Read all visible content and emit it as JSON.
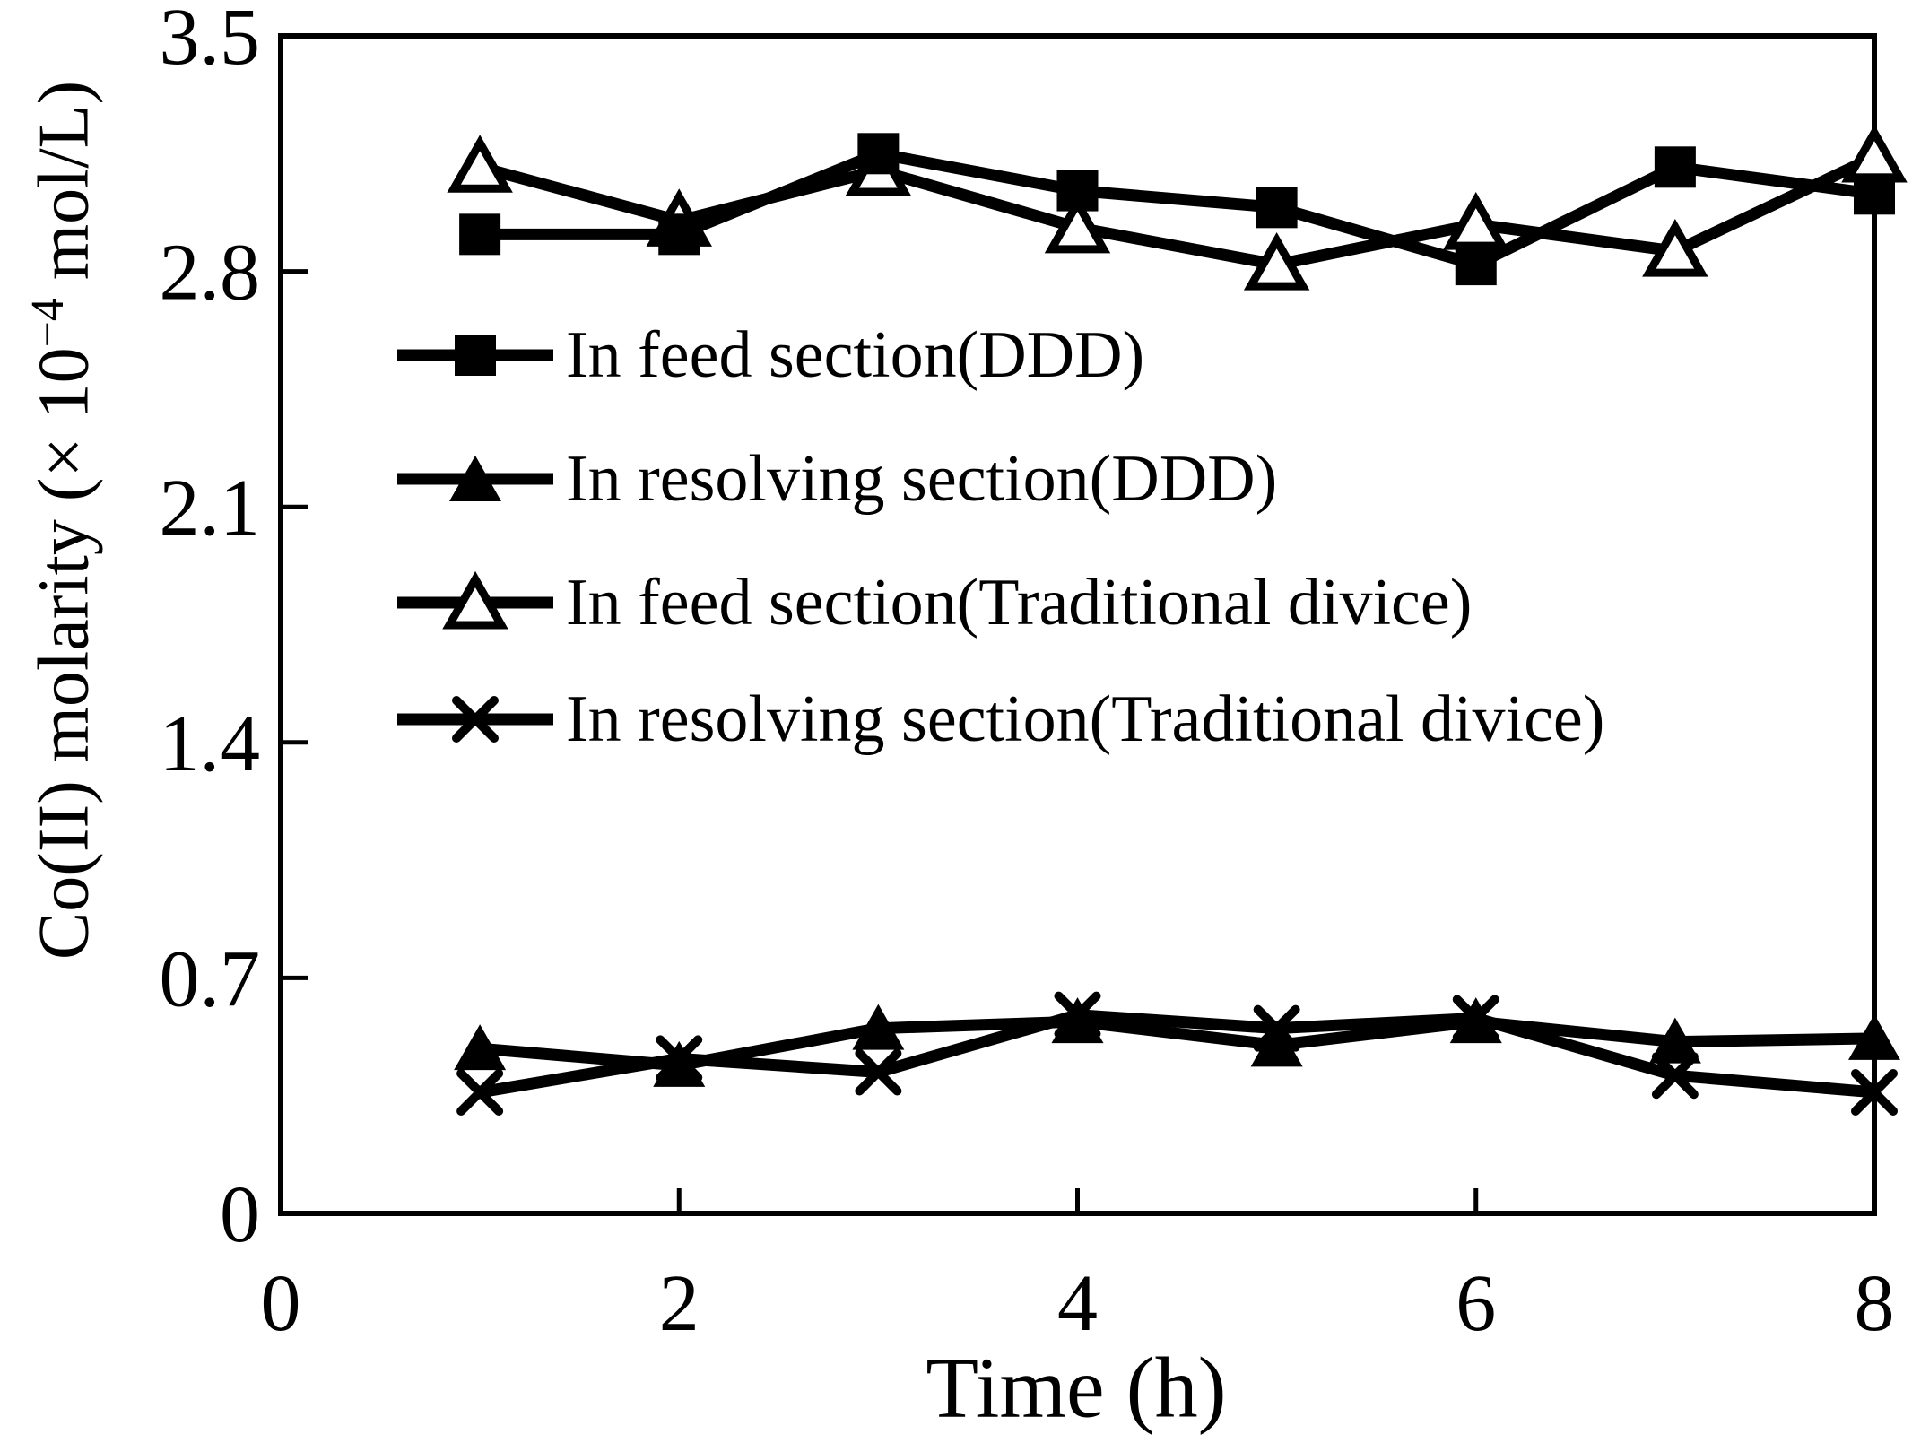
{
  "figure": {
    "background_color": "#ffffff",
    "ink_color": "#000000"
  },
  "chart_data": {
    "type": "line",
    "title": "",
    "xlabel": "Time (h)",
    "ylabel": "Co(II) molarity (× 10⁻⁴ mol/L)",
    "ylabel_parts": {
      "pre": "Co(II) molarity (× 10",
      "sup": "−4",
      "post": " mol/L)"
    },
    "xlim": [
      0,
      8
    ],
    "ylim": [
      0,
      3.5
    ],
    "x_ticks": [
      0,
      2,
      4,
      6,
      8
    ],
    "x_tick_labels": [
      "0",
      "2",
      "4",
      "6",
      "8"
    ],
    "y_ticks": [
      0,
      0.7,
      1.4,
      2.1,
      2.8,
      3.5
    ],
    "y_tick_labels": [
      "0",
      "0.7",
      "1.4",
      "2.1",
      "2.8",
      "3.5"
    ],
    "grid": false,
    "legend_position": "inside upper-left",
    "x": [
      1,
      2,
      3,
      4,
      5,
      6,
      7,
      8
    ],
    "series": [
      {
        "name": "In feed section(DDD)",
        "marker": "filled-square",
        "values": [
          2.91,
          2.91,
          3.15,
          3.04,
          2.99,
          2.82,
          3.11,
          3.03
        ]
      },
      {
        "name": "In resolving section(DDD)",
        "marker": "filled-triangle",
        "values": [
          0.49,
          0.44,
          0.55,
          0.57,
          0.5,
          0.57,
          0.51,
          0.52
        ]
      },
      {
        "name": "In feed section(Traditional divice)",
        "marker": "open-triangle",
        "values": [
          3.11,
          2.95,
          3.1,
          2.93,
          2.82,
          2.94,
          2.86,
          3.14
        ]
      },
      {
        "name": "In resolving section(Traditional divice)",
        "marker": "x-cross",
        "values": [
          0.36,
          0.46,
          0.42,
          0.59,
          0.55,
          0.58,
          0.41,
          0.36
        ]
      }
    ]
  }
}
